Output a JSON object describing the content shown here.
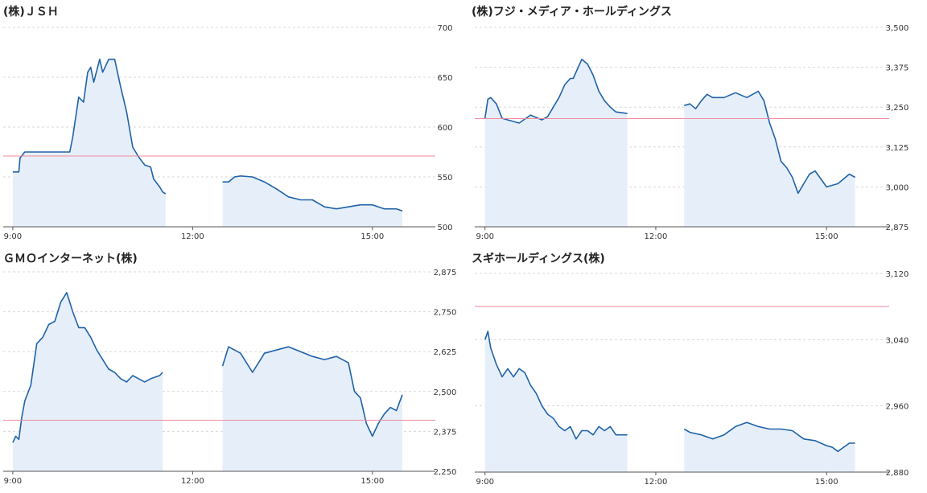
{
  "colors": {
    "line": "#1f62a8",
    "fill": "#e6eff9",
    "ref": "#f08a9f",
    "grid": "#d8d8d8",
    "axis": "#555555"
  },
  "chart_data": [
    {
      "type": "line",
      "title": "(株)ＪＳＨ",
      "x_ticks": [
        {
          "value": 9,
          "label": "9:00"
        },
        {
          "value": 12,
          "label": "12:00"
        },
        {
          "value": 15,
          "label": "15:00"
        }
      ],
      "y_ticks": [
        500,
        550,
        600,
        650,
        700
      ],
      "ylim": [
        500,
        700
      ],
      "reference": 571,
      "sessions": [
        {
          "x": [
            9.0,
            9.1,
            9.12,
            9.2,
            9.6,
            9.8,
            9.95,
            10.0,
            10.1,
            10.18,
            10.25,
            10.3,
            10.35,
            10.45,
            10.5,
            10.6,
            10.7,
            10.8,
            10.9,
            11.0,
            11.05,
            11.1,
            11.2,
            11.3,
            11.35,
            11.45,
            11.5,
            11.55
          ],
          "y": [
            555,
            555,
            569,
            575,
            575,
            575,
            575,
            590,
            630,
            625,
            655,
            660,
            645,
            668,
            655,
            668,
            668,
            640,
            615,
            580,
            575,
            570,
            562,
            560,
            548,
            540,
            535,
            533
          ]
        },
        {
          "x": [
            12.5,
            12.6,
            12.7,
            12.8,
            13.0,
            13.2,
            13.4,
            13.6,
            13.8,
            14.0,
            14.2,
            14.4,
            14.6,
            14.8,
            15.0,
            15.2,
            15.4,
            15.5
          ],
          "y": [
            545,
            545,
            550,
            551,
            550,
            545,
            538,
            530,
            527,
            527,
            520,
            518,
            520,
            522,
            522,
            518,
            518,
            516
          ]
        }
      ]
    },
    {
      "type": "line",
      "title": "(株)フジ・メディア・ホールディングス",
      "x_ticks": [
        {
          "value": 9,
          "label": "9:00"
        },
        {
          "value": 12,
          "label": "12:00"
        },
        {
          "value": 15,
          "label": "15:00"
        }
      ],
      "y_ticks": [
        {
          "value": 2875,
          "label": "2,875"
        },
        {
          "value": 3000,
          "label": "3,000"
        },
        {
          "value": 3125,
          "label": "3,125"
        },
        {
          "value": 3250,
          "label": "3,250"
        },
        {
          "value": 3375,
          "label": "3,375"
        },
        {
          "value": 3500,
          "label": "3,500"
        }
      ],
      "ylim": [
        2875,
        3500
      ],
      "reference": 3214,
      "sessions": [
        {
          "x": [
            9.0,
            9.05,
            9.1,
            9.2,
            9.3,
            9.4,
            9.6,
            9.8,
            10.0,
            10.1,
            10.2,
            10.3,
            10.4,
            10.5,
            10.55,
            10.6,
            10.7,
            10.8,
            10.9,
            11.0,
            11.1,
            11.2,
            11.3,
            11.5
          ],
          "y": [
            3215,
            3275,
            3280,
            3260,
            3215,
            3210,
            3200,
            3225,
            3210,
            3220,
            3250,
            3280,
            3320,
            3340,
            3340,
            3360,
            3400,
            3385,
            3350,
            3300,
            3270,
            3250,
            3235,
            3230
          ]
        },
        {
          "x": [
            12.5,
            12.6,
            12.7,
            12.8,
            12.9,
            13.0,
            13.2,
            13.4,
            13.6,
            13.8,
            13.9,
            14.0,
            14.1,
            14.2,
            14.3,
            14.4,
            14.5,
            14.6,
            14.7,
            14.8,
            15.0,
            15.2,
            15.4,
            15.5
          ],
          "y": [
            3255,
            3260,
            3245,
            3270,
            3290,
            3280,
            3280,
            3295,
            3280,
            3300,
            3270,
            3200,
            3150,
            3080,
            3060,
            3030,
            2980,
            3010,
            3040,
            3050,
            3000,
            3010,
            3040,
            3030
          ]
        }
      ]
    },
    {
      "type": "line",
      "title": "ＧＭＯインターネット(株)",
      "x_ticks": [
        {
          "value": 9,
          "label": "9:00"
        },
        {
          "value": 12,
          "label": "12:00"
        },
        {
          "value": 15,
          "label": "15:00"
        }
      ],
      "y_ticks": [
        {
          "value": 2250,
          "label": "2,250"
        },
        {
          "value": 2375,
          "label": "2,375"
        },
        {
          "value": 2500,
          "label": "2,500"
        },
        {
          "value": 2625,
          "label": "2,625"
        },
        {
          "value": 2750,
          "label": "2,750"
        },
        {
          "value": 2875,
          "label": "2,875"
        }
      ],
      "ylim": [
        2250,
        2875
      ],
      "reference": 2410,
      "sessions": [
        {
          "x": [
            9.0,
            9.05,
            9.1,
            9.15,
            9.2,
            9.3,
            9.4,
            9.5,
            9.6,
            9.7,
            9.8,
            9.9,
            10.0,
            10.1,
            10.2,
            10.3,
            10.4,
            10.5,
            10.6,
            10.7,
            10.8,
            10.9,
            11.0,
            11.1,
            11.2,
            11.3,
            11.45,
            11.5
          ],
          "y": [
            2340,
            2360,
            2350,
            2420,
            2470,
            2520,
            2650,
            2670,
            2710,
            2720,
            2780,
            2810,
            2750,
            2700,
            2700,
            2670,
            2630,
            2600,
            2570,
            2560,
            2540,
            2530,
            2550,
            2540,
            2530,
            2540,
            2550,
            2560
          ]
        },
        {
          "x": [
            12.5,
            12.6,
            12.7,
            12.8,
            13.0,
            13.2,
            13.4,
            13.6,
            13.8,
            14.0,
            14.2,
            14.4,
            14.6,
            14.7,
            14.8,
            14.9,
            15.0,
            15.1,
            15.2,
            15.3,
            15.4,
            15.5
          ],
          "y": [
            2580,
            2640,
            2630,
            2620,
            2560,
            2620,
            2630,
            2640,
            2625,
            2610,
            2600,
            2610,
            2590,
            2500,
            2480,
            2400,
            2360,
            2400,
            2430,
            2450,
            2440,
            2490
          ]
        }
      ]
    },
    {
      "type": "line",
      "title": "スギホールディングス(株)",
      "x_ticks": [
        {
          "value": 9,
          "label": "9:00"
        },
        {
          "value": 12,
          "label": "12:00"
        },
        {
          "value": 15,
          "label": "15:00"
        }
      ],
      "y_ticks": [
        {
          "value": 2880,
          "label": "2,880"
        },
        {
          "value": 2960,
          "label": "2,960"
        },
        {
          "value": 3040,
          "label": "3,040"
        },
        {
          "value": 3120,
          "label": "3,120"
        }
      ],
      "ylim": [
        2880,
        3120
      ],
      "reference": 3080,
      "sessions": [
        {
          "x": [
            9.0,
            9.05,
            9.1,
            9.2,
            9.3,
            9.4,
            9.5,
            9.6,
            9.7,
            9.8,
            9.9,
            10.0,
            10.1,
            10.2,
            10.3,
            10.4,
            10.5,
            10.6,
            10.7,
            10.8,
            10.9,
            11.0,
            11.1,
            11.2,
            11.3,
            11.5
          ],
          "y": [
            3040,
            3050,
            3030,
            3010,
            2995,
            3005,
            2995,
            3005,
            3000,
            2985,
            2975,
            2960,
            2950,
            2945,
            2935,
            2930,
            2935,
            2920,
            2930,
            2930,
            2925,
            2935,
            2930,
            2935,
            2925,
            2925
          ]
        },
        {
          "x": [
            12.5,
            12.6,
            12.8,
            13.0,
            13.2,
            13.4,
            13.6,
            13.8,
            14.0,
            14.2,
            14.4,
            14.6,
            14.8,
            15.0,
            15.1,
            15.2,
            15.3,
            15.4,
            15.5
          ],
          "y": [
            2932,
            2928,
            2925,
            2920,
            2925,
            2935,
            2940,
            2935,
            2932,
            2932,
            2930,
            2920,
            2918,
            2912,
            2910,
            2905,
            2910,
            2915,
            2915
          ]
        }
      ]
    }
  ]
}
